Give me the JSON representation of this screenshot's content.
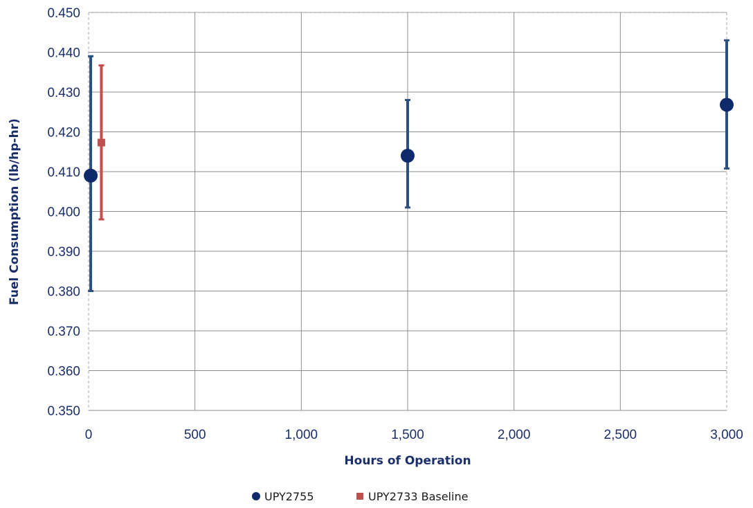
{
  "chart_data": {
    "type": "scatter",
    "title": "",
    "xlabel": "Hours of Operation",
    "ylabel": "Fuel Consumption (lb/hp-hr)",
    "xlim": [
      0,
      3000
    ],
    "ylim": [
      0.35,
      0.45
    ],
    "x_ticks": [
      0,
      500,
      1000,
      1500,
      2000,
      2500,
      3000
    ],
    "x_tick_labels": [
      "0",
      "500",
      "1,000",
      "1,500",
      "2,000",
      "2,500",
      "3,000"
    ],
    "y_ticks": [
      0.35,
      0.36,
      0.37,
      0.38,
      0.39,
      0.4,
      0.41,
      0.42,
      0.43,
      0.44,
      0.45
    ],
    "y_tick_labels": [
      "0.350",
      "0.360",
      "0.370",
      "0.380",
      "0.390",
      "0.400",
      "0.410",
      "0.420",
      "0.430",
      "0.440",
      "0.450"
    ],
    "grid": true,
    "legend_position": "bottom",
    "series": [
      {
        "name": "UPY2755",
        "marker": "circle",
        "color": "#0f2a6b",
        "error_color": "#2b5080",
        "points": [
          {
            "x": 10,
            "y": 0.409,
            "low": 0.38,
            "high": 0.439
          },
          {
            "x": 1500,
            "y": 0.414,
            "low": 0.401,
            "high": 0.428
          },
          {
            "x": 3000,
            "y": 0.4268,
            "low": 0.4108,
            "high": 0.443
          }
        ]
      },
      {
        "name": "UPY2733 Baseline",
        "marker": "square",
        "color": "#c0504d",
        "error_color": "#c0504d",
        "points": [
          {
            "x": 60,
            "y": 0.4173,
            "low": 0.398,
            "high": 0.4367
          }
        ]
      }
    ]
  }
}
